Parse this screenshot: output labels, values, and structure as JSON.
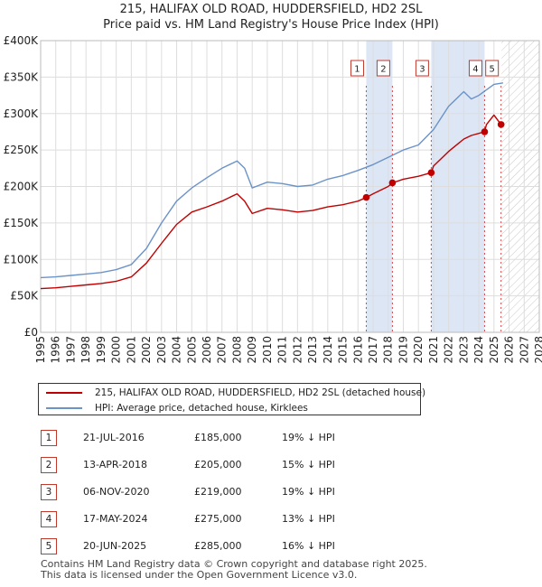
{
  "title_line1": "215, HALIFAX OLD ROAD, HUDDERSFIELD, HD2 2SL",
  "title_line2": "Price paid vs. HM Land Registry's House Price Index (HPI)",
  "colors": {
    "price_paid": "#c00000",
    "hpi": "#6b93c8",
    "shade": "#dde6f4",
    "marker_border": "#c0392b"
  },
  "chart_data": {
    "type": "line",
    "title": "215, HALIFAX OLD ROAD, HUDDERSFIELD, HD2 2SL — Price paid vs. HM Land Registry's House Price Index (HPI)",
    "xlabel": "",
    "ylabel": "",
    "xlim": [
      1995,
      2028
    ],
    "ylim": [
      0,
      400000
    ],
    "x_ticks": [
      "1995",
      "1996",
      "1997",
      "1998",
      "1999",
      "2000",
      "2001",
      "2002",
      "2003",
      "2004",
      "2005",
      "2006",
      "2007",
      "2008",
      "2009",
      "2010",
      "2011",
      "2012",
      "2013",
      "2014",
      "2015",
      "2016",
      "2017",
      "2018",
      "2019",
      "2020",
      "2021",
      "2022",
      "2023",
      "2024",
      "2025",
      "2026",
      "2027",
      "2028"
    ],
    "y_ticks": [
      {
        "value": 0,
        "label": "£0"
      },
      {
        "value": 50000,
        "label": "£50K"
      },
      {
        "value": 100000,
        "label": "£100K"
      },
      {
        "value": 150000,
        "label": "£150K"
      },
      {
        "value": 200000,
        "label": "£200K"
      },
      {
        "value": 250000,
        "label": "£250K"
      },
      {
        "value": 300000,
        "label": "£300K"
      },
      {
        "value": 350000,
        "label": "£350K"
      },
      {
        "value": 400000,
        "label": "£400K"
      }
    ],
    "grid": true,
    "shaded_periods": [
      [
        2016.55,
        2018.28
      ],
      [
        2020.85,
        2024.38
      ]
    ],
    "hatched_region": [
      2025.5,
      2028
    ],
    "series": [
      {
        "name": "215, HALIFAX OLD ROAD, HUDDERSFIELD, HD2 2SL (detached house)",
        "color": "#c00000",
        "x": [
          1995,
          1996,
          1997,
          1998,
          1999,
          2000,
          2001,
          2002,
          2003,
          2004,
          2005,
          2006,
          2007,
          2008,
          2008.5,
          2009,
          2010,
          2011,
          2012,
          2013,
          2014,
          2015,
          2016,
          2016.55,
          2017,
          2018,
          2018.28,
          2019,
          2020,
          2020.85,
          2021,
          2022,
          2023,
          2023.5,
          2024.38,
          2024.5,
          2025,
          2025.47,
          2025.6
        ],
        "values": [
          60000,
          61000,
          63000,
          65000,
          67000,
          70000,
          76000,
          95000,
          122000,
          148000,
          165000,
          172000,
          180000,
          190000,
          180000,
          163000,
          170000,
          168000,
          165000,
          167000,
          172000,
          175000,
          180000,
          185000,
          190000,
          200000,
          205000,
          210000,
          214000,
          219000,
          228000,
          248000,
          265000,
          270000,
          275000,
          285000,
          298000,
          285000,
          284000
        ]
      },
      {
        "name": "HPI: Average price, detached house, Kirklees",
        "color": "#6b93c8",
        "x": [
          1995,
          1996,
          1997,
          1998,
          1999,
          2000,
          2001,
          2002,
          2003,
          2004,
          2005,
          2006,
          2007,
          2008,
          2008.5,
          2009,
          2010,
          2011,
          2012,
          2013,
          2014,
          2015,
          2016,
          2017,
          2018,
          2019,
          2020,
          2021,
          2022,
          2023,
          2023.5,
          2024,
          2025,
          2025.6
        ],
        "values": [
          75000,
          76000,
          78000,
          80000,
          82000,
          86000,
          93000,
          115000,
          150000,
          180000,
          198000,
          212000,
          225000,
          235000,
          225000,
          198000,
          206000,
          204000,
          200000,
          202000,
          210000,
          215000,
          222000,
          230000,
          240000,
          250000,
          257000,
          278000,
          310000,
          330000,
          320000,
          325000,
          340000,
          342000
        ]
      }
    ],
    "sale_markers": [
      {
        "n": "1",
        "x": 2016.55,
        "value": 185000
      },
      {
        "n": "2",
        "x": 2018.28,
        "value": 205000
      },
      {
        "n": "3",
        "x": 2020.85,
        "value": 219000
      },
      {
        "n": "4",
        "x": 2024.38,
        "value": 275000
      },
      {
        "n": "5",
        "x": 2025.47,
        "value": 285000
      }
    ]
  },
  "legend": {
    "price_label": "215, HALIFAX OLD ROAD, HUDDERSFIELD, HD2 2SL (detached house)",
    "hpi_label": "HPI: Average price, detached house, Kirklees"
  },
  "sales": [
    {
      "n": "1",
      "date": "21-JUL-2016",
      "price": "£185,000",
      "hpi": "19% ↓ HPI"
    },
    {
      "n": "2",
      "date": "13-APR-2018",
      "price": "£205,000",
      "hpi": "15% ↓ HPI"
    },
    {
      "n": "3",
      "date": "06-NOV-2020",
      "price": "£219,000",
      "hpi": "19% ↓ HPI"
    },
    {
      "n": "4",
      "date": "17-MAY-2024",
      "price": "£275,000",
      "hpi": "13% ↓ HPI"
    },
    {
      "n": "5",
      "date": "20-JUN-2025",
      "price": "£285,000",
      "hpi": "16% ↓ HPI"
    }
  ],
  "footer_line1": "Contains HM Land Registry data © Crown copyright and database right 2025.",
  "footer_line2": "This data is licensed under the Open Government Licence v3.0."
}
